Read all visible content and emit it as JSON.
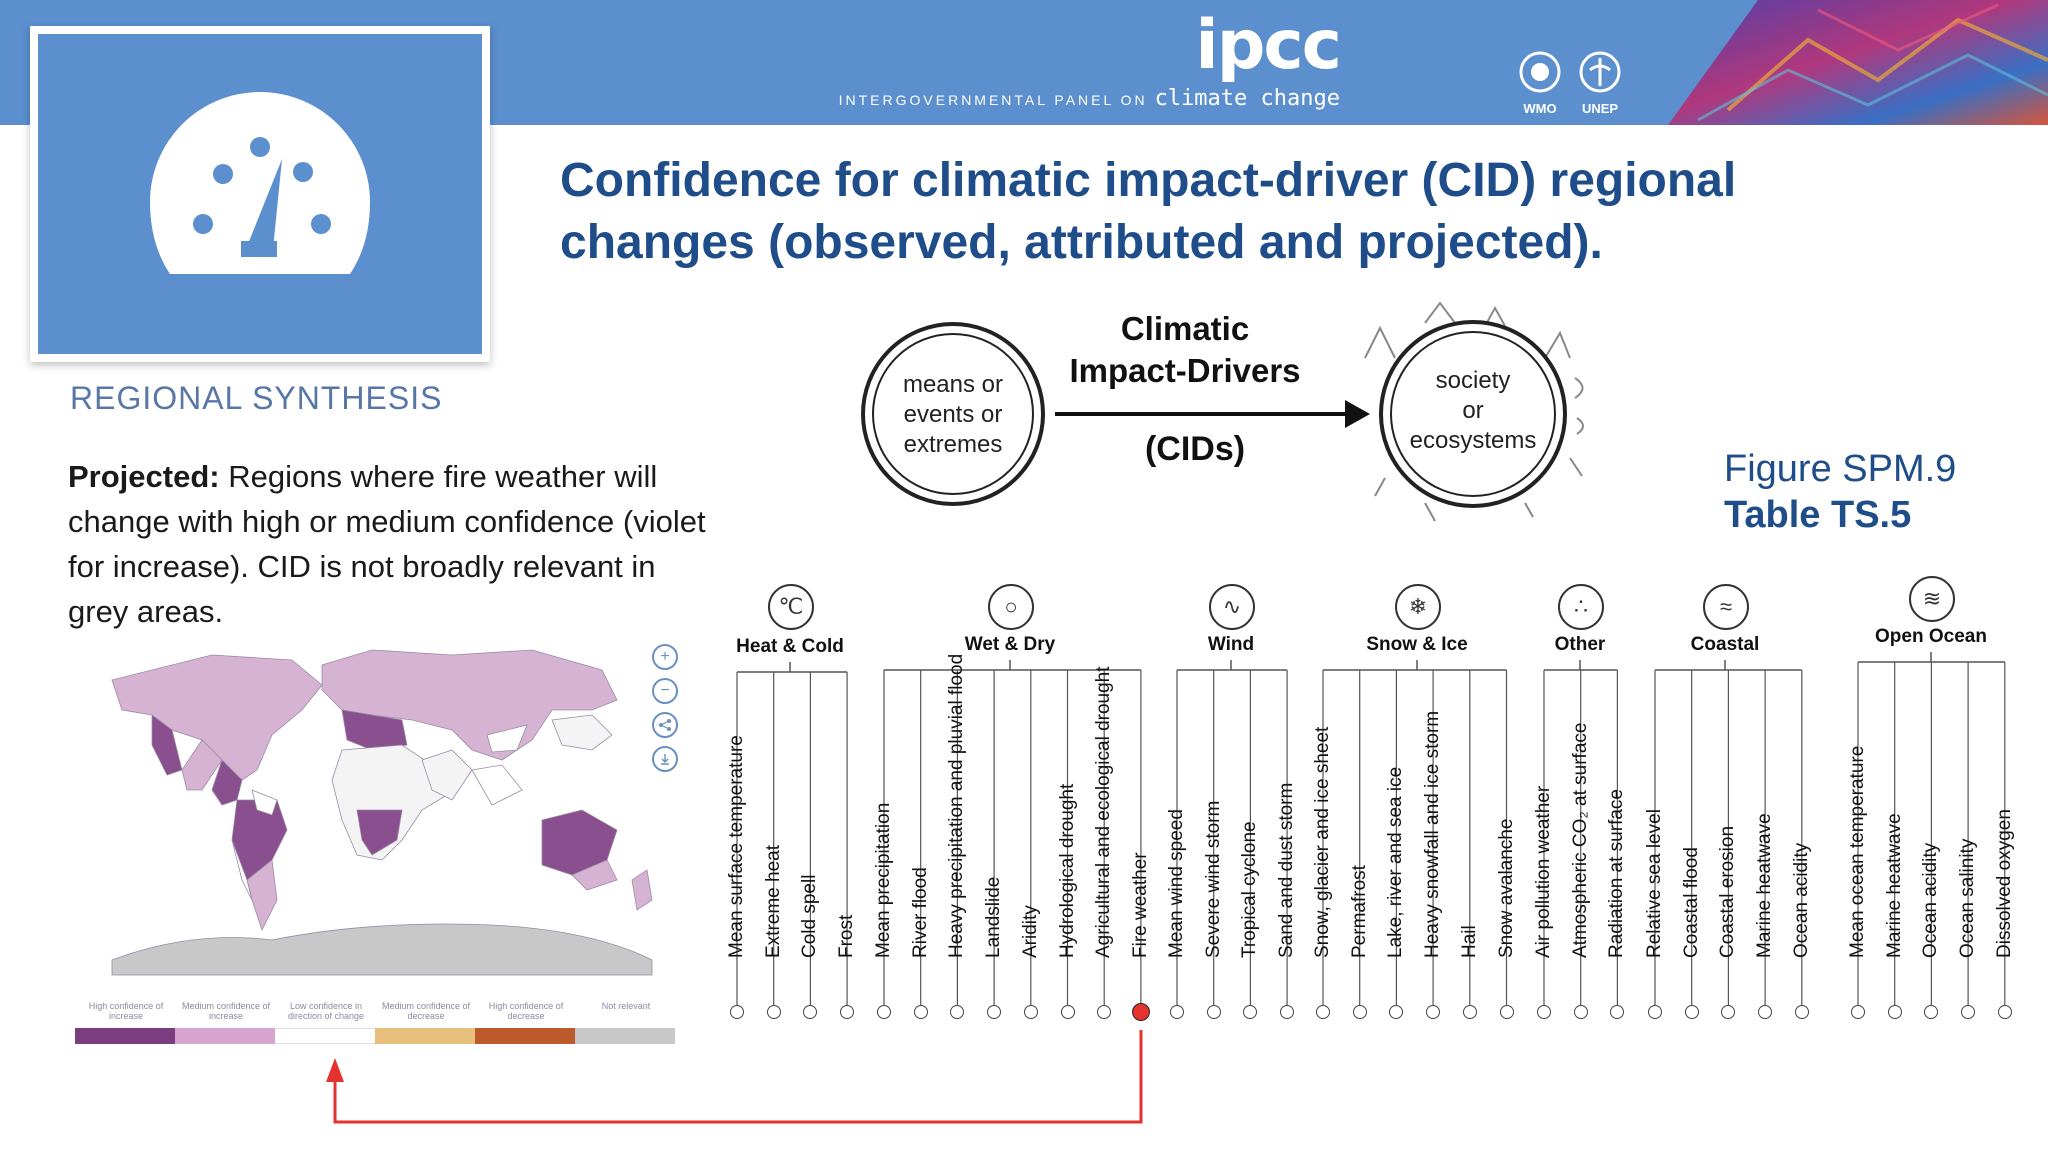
{
  "header": {
    "logo_text": "ipcc",
    "org_name_prefix": "INTERGOVERNMENTAL PANEL ON",
    "org_name_emph": "climate change",
    "partners": [
      "WMO",
      "UNEP"
    ]
  },
  "card": {
    "label": "REGIONAL SYNTHESIS",
    "icon": "gauge-icon"
  },
  "title": "Confidence for climatic impact-driver (CID) regional changes (observed, attributed and projected).",
  "projected": {
    "bold": "Projected:",
    "text": " Regions where fire weather will change with high or medium confidence (violet for increase). CID is not broadly relevant in grey areas."
  },
  "figure_ref": {
    "line1": "Figure SPM.9",
    "line2": "Table TS.5"
  },
  "diagram": {
    "left": [
      "means or",
      "events or",
      "extremes"
    ],
    "center_title": [
      "Climatic",
      "Impact-Drivers"
    ],
    "center_abbr": "(CIDs)",
    "right": [
      "society",
      "or",
      "ecosystems"
    ]
  },
  "map": {
    "controls": [
      "+",
      "−",
      "share",
      "download"
    ],
    "legend": [
      {
        "label": "High confidence of increase",
        "color": "#7c3d80"
      },
      {
        "label": "Medium confidence of increase",
        "color": "#d6a5cf"
      },
      {
        "label": "Low confidence in direction of change",
        "color": "#ffffff"
      },
      {
        "label": "Medium confidence of decrease",
        "color": "#e8c07e"
      },
      {
        "label": "High confidence of decrease",
        "color": "#bd5a2c"
      },
      {
        "label": "Not relevant",
        "color": "#c8c8c8"
      }
    ]
  },
  "cid_groups": [
    {
      "name": "Heat & Cold",
      "icon": "thermometer-icon",
      "items": [
        "Mean surface temperature",
        "Extreme heat",
        "Cold spell",
        "Frost"
      ]
    },
    {
      "name": "Wet & Dry",
      "icon": "water-drop-icon",
      "items": [
        "Mean precipitation",
        "River flood",
        "Heavy precipitation and pluvial flood",
        "Landslide",
        "Aridity",
        "Hydrological drought",
        "Agricultural and ecological drought",
        "Fire weather"
      ]
    },
    {
      "name": "Wind",
      "icon": "wind-icon",
      "items": [
        "Mean wind speed",
        "Severe wind storm",
        "Tropical cyclone",
        "Sand and dust storm"
      ]
    },
    {
      "name": "Snow & Ice",
      "icon": "snowflake-icon",
      "items": [
        "Snow, glacier and ice sheet",
        "Permafrost",
        "Lake, river and sea ice",
        "Heavy snowfall and ice storm",
        "Hail",
        "Snow avalanche"
      ]
    },
    {
      "name": "Other",
      "icon": "particles-icon",
      "items": [
        "Air pollution weather",
        "Atmospheric CO₂ at surface",
        "Radiation at surface"
      ]
    },
    {
      "name": "Coastal",
      "icon": "coast-icon",
      "items": [
        "Relative sea level",
        "Coastal flood",
        "Coastal erosion",
        "Marine heatwave",
        "Ocean acidity"
      ]
    },
    {
      "name": "Open Ocean",
      "icon": "ocean-waves-icon",
      "items": [
        "Mean ocean temperature",
        "Marine heatwave",
        "Ocean acidity",
        "Ocean salinity",
        "Dissolved oxygen"
      ]
    }
  ],
  "selected_cid": "Fire weather",
  "colors": {
    "header_blue": "#5b8fce",
    "title_blue": "#1f4d8a",
    "arrow_red": "#e4332f"
  }
}
